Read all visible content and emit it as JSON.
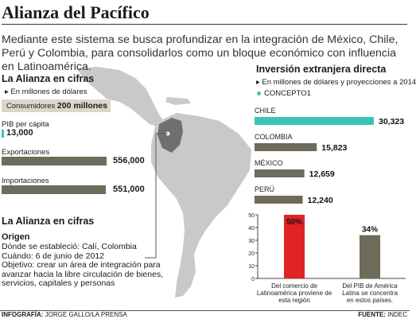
{
  "title": "Alianza del Pacífico",
  "intro": "Mediante este sistema se busca profundizar en la integración de México, Chile, Perú y Colombia, para consolidarlos como un bloque económico con influencia en Latinoamérica.",
  "left": {
    "heading": "La Alianza en cifras",
    "unit": "▸ En millones de dólares",
    "consumers_label": "Consumidores",
    "consumers_value": "200 millones",
    "pib_label": "PIB per cápita",
    "pib_value": "13,000",
    "exports_label": "Exportaciones",
    "exports_value": "556,000",
    "imports_label": "Importaciones",
    "imports_value": "551,000"
  },
  "info": {
    "heading": "La Alianza en cifras",
    "subheading": "Origen",
    "lines": [
      "Dónde se estableció: Calí, Colombia",
      "Cuándo: 6 de junio de 2012",
      "Objetivo: crear un área de integración para",
      "avanzar hacia la libre circulación de bienes,",
      "servicios, capitales y personas"
    ]
  },
  "fdi": {
    "heading": "Inversión extranjera directa",
    "unit": "▸ En millones de dólares y proyecciones a 2014",
    "legend": "CONCEPTO1"
  },
  "footer": {
    "credit_label": "INFOGRAFÍA:",
    "credit": "JORGE GALLO/LA PRENSA",
    "source_label": "FUENTE:",
    "source": "INDEC"
  },
  "colors": {
    "teal": "#3cc3ba",
    "olive": "#6e6b5a",
    "red": "#e02424",
    "map": "#c9c9c9",
    "colombia": "#6f6f6f"
  },
  "chart_data": [
    {
      "type": "bar",
      "orientation": "horizontal",
      "categories": [
        "CHILE",
        "COLOMBIA",
        "MÉXICO",
        "PERÚ"
      ],
      "values": [
        30323,
        15823,
        12659,
        12240
      ],
      "value_labels": [
        "30,323",
        "15,823",
        "12,659",
        "12,240"
      ],
      "colors": [
        "#3cc3ba",
        "#6e6b5a",
        "#6e6b5a",
        "#6e6b5a"
      ]
    },
    {
      "type": "bar",
      "categories": [
        "Del comercio de Latinoamérica proviene de esta región",
        "Del PIB de América Latina se concentra en estos países."
      ],
      "category_lines": [
        [
          "Del comercio de",
          "Latinoamérica proviene de",
          "esta región"
        ],
        [
          "Del PIB de América",
          "Latina se concentra",
          "en estos países."
        ]
      ],
      "values": [
        50,
        34
      ],
      "value_labels": [
        "50%",
        "34%"
      ],
      "colors": [
        "#e02424",
        "#6e6b5a"
      ],
      "ylim": [
        0,
        50
      ],
      "yticks": [
        0,
        10,
        20,
        30,
        40,
        50
      ]
    },
    {
      "type": "bar",
      "orientation": "horizontal",
      "categories": [
        "Exportaciones",
        "Importaciones"
      ],
      "values": [
        556000,
        551000
      ],
      "value_labels": [
        "556,000",
        "551,000"
      ],
      "colors": [
        "#6e6b5a",
        "#6e6b5a"
      ]
    }
  ]
}
